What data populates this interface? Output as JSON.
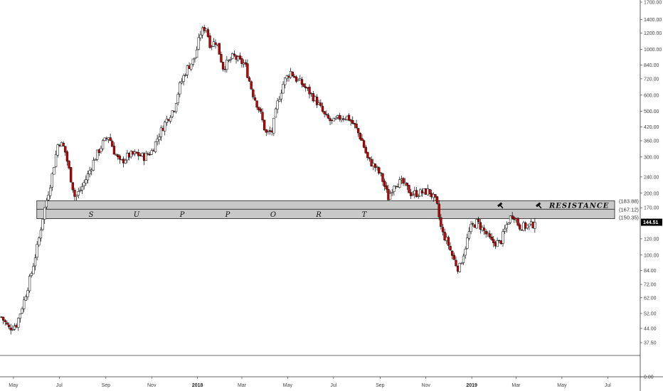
{
  "chart_data": {
    "type": "candlestick",
    "scale": "log",
    "grid": false,
    "legend": "none",
    "colors": {
      "up": "#ffffff",
      "down": "#cc0000",
      "outline": "#000000",
      "zone": "#c8c8c8",
      "tag": "#000000"
    },
    "yaxis": {
      "ticks": [
        "1700.00",
        "1400.00",
        "1200.00",
        "1000.00",
        "840.00",
        "720.00",
        "600.00",
        "500.00",
        "420.00",
        "360.00",
        "300.00",
        "240.00",
        "200.00",
        "170.00",
        "144.51",
        "120.00",
        "100.00",
        "84.00",
        "72.00",
        "62.00",
        "52.00",
        "44.00",
        "37.50",
        "0.00"
      ],
      "tick_values": [
        1700,
        1400,
        1200,
        1000,
        840,
        720,
        600,
        500,
        420,
        360,
        300,
        240,
        200,
        170,
        144.51,
        120,
        100,
        84,
        72,
        62,
        52,
        44,
        37.5,
        0
      ],
      "range": [
        37.5,
        1700
      ]
    },
    "xaxis": {
      "ticks": [
        "May",
        "Jul",
        "Sep",
        "Nov",
        "2018",
        "Mar",
        "May",
        "Jul",
        "Sep",
        "Nov",
        "2019",
        "Mar",
        "May",
        "Jul"
      ],
      "bold": [
        false,
        false,
        false,
        false,
        true,
        false,
        false,
        false,
        false,
        false,
        true,
        false,
        false,
        false
      ],
      "range": [
        "2017-04-15",
        "2019-07-31"
      ]
    },
    "zones": [
      {
        "name": "resistance",
        "top": 183.88,
        "bottom": 167.12,
        "top_label": "(183.88)",
        "bottom_label": "(167.12)",
        "text": "RESISTANCE"
      },
      {
        "name": "support",
        "top": 167.12,
        "bottom": 150.35,
        "bottom_label": "(150.35)",
        "letters": [
          "S",
          "U",
          "P",
          "P",
          "O",
          "R",
          "T"
        ]
      }
    ],
    "last_price": 144.51,
    "last_price_label": "144.51",
    "anchor_points": [
      [
        "2017-04-15",
        50
      ],
      [
        "2017-04-25",
        44
      ],
      [
        "2017-05-05",
        46
      ],
      [
        "2017-05-15",
        60
      ],
      [
        "2017-05-25",
        82
      ],
      [
        "2017-06-03",
        115
      ],
      [
        "2017-06-10",
        160
      ],
      [
        "2017-06-20",
        230
      ],
      [
        "2017-06-30",
        360
      ],
      [
        "2017-07-08",
        330
      ],
      [
        "2017-07-16",
        240
      ],
      [
        "2017-07-22",
        190
      ],
      [
        "2017-07-30",
        210
      ],
      [
        "2017-08-07",
        240
      ],
      [
        "2017-08-18",
        300
      ],
      [
        "2017-08-28",
        350
      ],
      [
        "2017-09-05",
        380
      ],
      [
        "2017-09-12",
        320
      ],
      [
        "2017-09-20",
        280
      ],
      [
        "2017-10-01",
        305
      ],
      [
        "2017-10-12",
        310
      ],
      [
        "2017-10-22",
        300
      ],
      [
        "2017-11-01",
        320
      ],
      [
        "2017-11-10",
        380
      ],
      [
        "2017-11-20",
        450
      ],
      [
        "2017-12-01",
        520
      ],
      [
        "2017-12-08",
        660
      ],
      [
        "2017-12-18",
        810
      ],
      [
        "2017-12-28",
        900
      ],
      [
        "2018-01-05",
        1200
      ],
      [
        "2018-01-12",
        1300
      ],
      [
        "2018-01-18",
        1050
      ],
      [
        "2018-01-26",
        1100
      ],
      [
        "2018-02-04",
        820
      ],
      [
        "2018-02-11",
        870
      ],
      [
        "2018-02-18",
        930
      ],
      [
        "2018-02-25",
        880
      ],
      [
        "2018-03-05",
        850
      ],
      [
        "2018-03-15",
        620
      ],
      [
        "2018-03-25",
        500
      ],
      [
        "2018-04-02",
        390
      ],
      [
        "2018-04-10",
        400
      ],
      [
        "2018-04-18",
        560
      ],
      [
        "2018-04-26",
        700
      ],
      [
        "2018-05-05",
        780
      ],
      [
        "2018-05-12",
        720
      ],
      [
        "2018-05-20",
        680
      ],
      [
        "2018-05-30",
        620
      ],
      [
        "2018-06-10",
        550
      ],
      [
        "2018-06-20",
        470
      ],
      [
        "2018-06-30",
        440
      ],
      [
        "2018-07-10",
        470
      ],
      [
        "2018-07-20",
        470
      ],
      [
        "2018-07-30",
        420
      ],
      [
        "2018-08-08",
        360
      ],
      [
        "2018-08-16",
        290
      ],
      [
        "2018-08-25",
        270
      ],
      [
        "2018-09-03",
        240
      ],
      [
        "2018-09-12",
        190
      ],
      [
        "2018-09-20",
        225
      ],
      [
        "2018-10-01",
        225
      ],
      [
        "2018-10-12",
        200
      ],
      [
        "2018-10-22",
        200
      ],
      [
        "2018-11-05",
        205
      ],
      [
        "2018-11-15",
        180
      ],
      [
        "2018-11-22",
        130
      ],
      [
        "2018-11-30",
        115
      ],
      [
        "2018-12-08",
        95
      ],
      [
        "2018-12-15",
        85
      ],
      [
        "2018-12-22",
        105
      ],
      [
        "2018-12-30",
        135
      ],
      [
        "2019-01-08",
        145
      ],
      [
        "2019-01-18",
        130
      ],
      [
        "2019-01-28",
        115
      ],
      [
        "2019-02-08",
        115
      ],
      [
        "2019-02-18",
        145
      ],
      [
        "2019-02-25",
        160
      ],
      [
        "2019-03-05",
        138
      ],
      [
        "2019-03-15",
        138
      ],
      [
        "2019-03-22",
        140
      ],
      [
        "2019-03-28",
        144.51
      ]
    ]
  }
}
